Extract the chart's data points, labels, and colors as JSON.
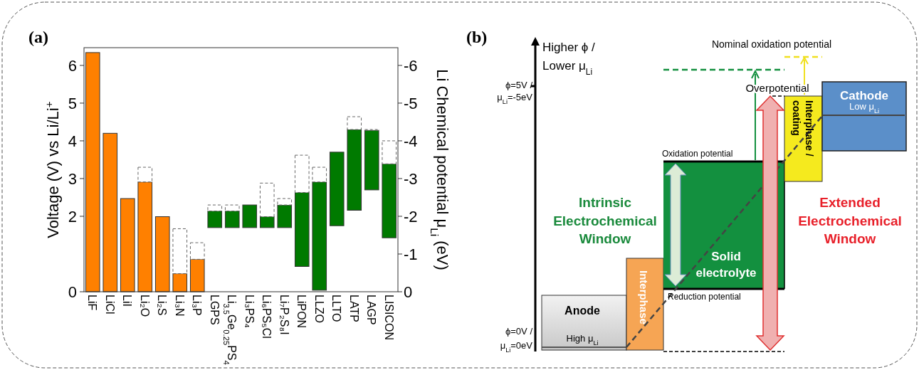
{
  "chart_data": [
    {
      "type": "bar",
      "title": "(a)",
      "ylabel": "Voltage (V) vs Li/Li$^{+}$",
      "y2label": "Li Chemical potential μ$_{Li}$ (eV)",
      "categories": [
        "LiF",
        "LiCl",
        "LiI",
        "Li₂O",
        "Li₂S",
        "Li₃N",
        "Li₃P",
        "LGPS",
        "Li$_{3.5}$Ge$_{0.25}$PS$_{4}$",
        "Li₃PS₄",
        "Li₆PS₅Cl",
        "Li₇P₂S₈I",
        "LiPON",
        "LLZO",
        "LLTO",
        "LATP",
        "LAGP",
        "LISICON"
      ],
      "series": [
        {
          "values": [
            6.34,
            4.2,
            2.47,
            2.91,
            1.99,
            0.48,
            0.86,
            0.44,
            0.44,
            0.6,
            0.29,
            0.6,
            1.96,
            2.87,
            1.95,
            2.14,
            1.58,
            1.96
          ],
          "base": [
            0,
            0,
            0,
            0,
            0,
            0,
            0,
            1.7,
            1.7,
            1.7,
            1.7,
            1.7,
            0.67,
            0.04,
            1.75,
            2.16,
            2.7,
            1.43
          ],
          "colors": [
            "#ff8000",
            "#ff8000",
            "#ff8000",
            "#ff8000",
            "#ff8000",
            "#ff8000",
            "#ff8000",
            "#007a00",
            "#007a00",
            "#007a00",
            "#007a00",
            "#007a00",
            "#007a00",
            "#007a00",
            "#007a00",
            "#007a00",
            "#007a00",
            "#007a00"
          ]
        },
        {
          "values": [
            null,
            null,
            null,
            0.39,
            null,
            1.19,
            0.44,
            0.16,
            0.16,
            null,
            0.89,
            0.17,
            0.99,
            0.39,
            null,
            0.34,
            0.02,
            0.61
          ],
          "base": [
            null,
            null,
            null,
            2.91,
            null,
            0.48,
            0.86,
            2.14,
            2.14,
            null,
            1.99,
            2.3,
            2.63,
            2.91,
            null,
            4.3,
            4.28,
            3.39
          ],
          "color": "#ffffff",
          "line_style": "dashed"
        }
      ],
      "ylim": [
        0,
        6.47
      ],
      "yticks": [
        0,
        2,
        3,
        4,
        5,
        6
      ],
      "y2lim": [
        0,
        -6.47
      ],
      "y2ticks": [
        0,
        -1,
        -2,
        -3,
        -4,
        -5,
        -6
      ]
    },
    {
      "type": "other",
      "title": "(b)",
      "annotations": [
        "Higher ϕ /",
        "Lower μ$_{Li}$",
        "ϕ=5V /",
        "μ$_{Li}$=-5eV",
        "ϕ=0V /",
        "μ$_{Li}$=0eV",
        "Nominal oxidation potential",
        "Overpotential",
        "Cathode",
        "Low μ$_{Li}$",
        "Interphase /",
        "coating",
        "Oxidation potential",
        "Intrinsic",
        "Electrochemical",
        "Window",
        "Solid",
        "electrolyte",
        "Reduction potential",
        "Anode",
        "High μ$_{Li}$",
        "Interphase",
        "Extended",
        "Electrochemical",
        "Window"
      ]
    }
  ]
}
